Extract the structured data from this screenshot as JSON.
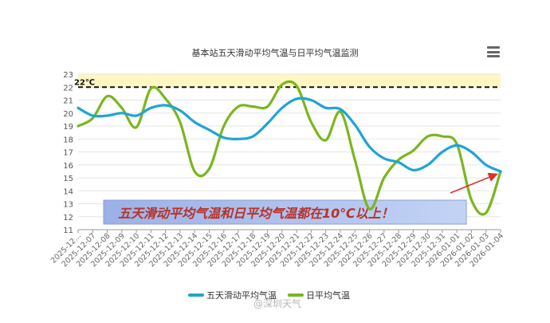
{
  "chart_data": {
    "type": "line",
    "title": "基本站五天滑动平均气温与日平均气温监测",
    "ylim": [
      11,
      23
    ],
    "yticks": [
      11,
      12,
      13,
      14,
      15,
      16,
      17,
      18,
      19,
      20,
      21,
      22,
      23
    ],
    "categories": [
      "2025-12...",
      "2025-12-07",
      "2025-12-08",
      "2025-12-09",
      "2025-12-10",
      "2025-12-11",
      "2025-12-12",
      "2025-12-13",
      "2025-12-14",
      "2025-12-15",
      "2025-12-16",
      "2025-12-17",
      "2025-12-18",
      "2025-12-19",
      "2025-12-20",
      "2025-12-21",
      "2025-12-22",
      "2025-12-23",
      "2025-12-24",
      "2025-12-25",
      "2025-12-26",
      "2025-12-27",
      "2025-12-28",
      "2025-12-29",
      "2025-12-30",
      "2025-12-31",
      "2026-01-01",
      "2026-01-02",
      "2026-01-03",
      "2026-01-04"
    ],
    "series": [
      {
        "name": "五天滑动平均气温",
        "color": "#1fa4d6",
        "values": [
          20.4,
          19.8,
          19.8,
          20.0,
          19.8,
          20.4,
          20.6,
          20.2,
          19.3,
          18.7,
          18.1,
          18.0,
          18.2,
          19.2,
          20.4,
          21.1,
          21.0,
          20.4,
          20.3,
          19.1,
          17.4,
          16.5,
          16.2,
          15.6,
          16.0,
          17.0,
          17.5,
          17.0,
          16.0,
          15.5
        ]
      },
      {
        "name": "日平均气温",
        "color": "#7ab61e",
        "values": [
          19.0,
          19.6,
          21.3,
          20.4,
          18.9,
          21.9,
          21.1,
          19.3,
          15.5,
          15.7,
          19.0,
          20.5,
          20.5,
          20.5,
          22.2,
          22.1,
          19.3,
          17.9,
          20.1,
          16.4,
          12.6,
          15.0,
          16.4,
          17.1,
          18.2,
          18.2,
          17.6,
          13.3,
          12.3,
          15.5
        ]
      }
    ],
    "threshold": {
      "value": 22,
      "label": "22℃",
      "band_color": "#fff6c2"
    },
    "annotation": {
      "text": "五天滑动平均气温和日平均气温都在10℃以上！"
    },
    "grid": true,
    "legend": "bottom-center"
  },
  "watermark": "@深圳天气",
  "menu_icon": "hamburger-menu-icon"
}
